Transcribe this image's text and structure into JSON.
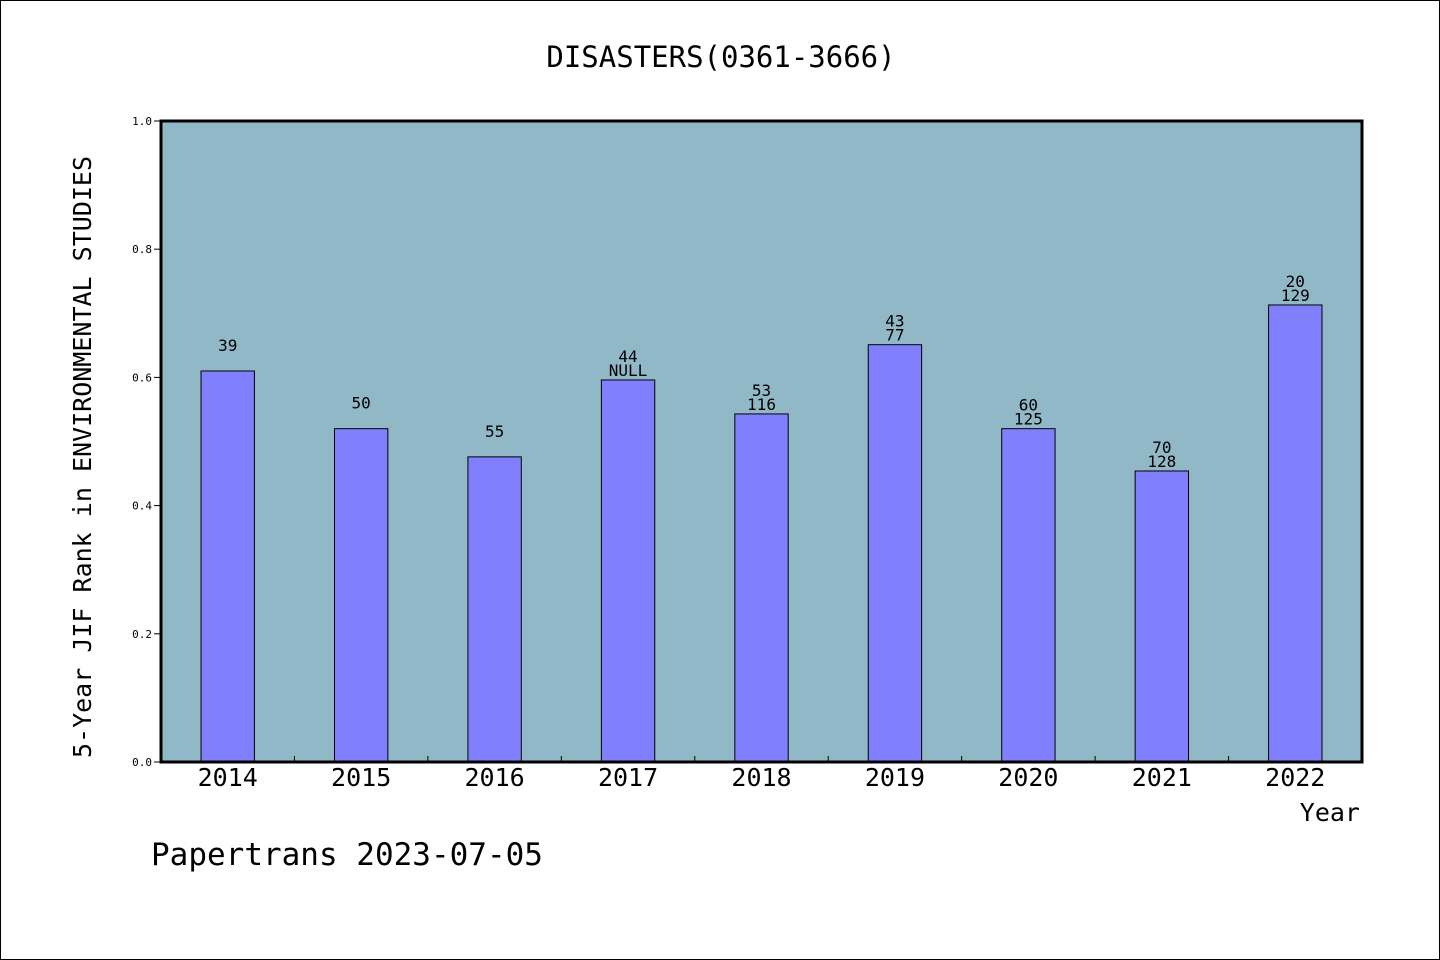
{
  "chart_data": {
    "type": "bar",
    "title": "DISASTERS(0361-3666)",
    "xlabel": "Year",
    "ylabel": "5-Year JIF Rank in ENVIRONMENTAL STUDIES",
    "ylim": [
      0,
      1
    ],
    "yticks": [
      "0.0",
      "0.2",
      "0.4",
      "0.6",
      "0.8",
      "1.0"
    ],
    "categories": [
      "2014",
      "2015",
      "2016",
      "2017",
      "2018",
      "2019",
      "2020",
      "2021",
      "2022"
    ],
    "values": [
      0.61,
      0.52,
      0.476,
      0.596,
      0.543,
      0.651,
      0.52,
      0.454,
      0.713
    ],
    "rank_labels": [
      "39",
      "50",
      "55",
      "44",
      "53",
      "43",
      "60",
      "70",
      "20"
    ],
    "total_labels": [
      "",
      "",
      "",
      "NULL",
      "116",
      "77",
      "125",
      "128",
      "129"
    ],
    "grid": false,
    "legend": "none",
    "colors": {
      "bar": "#8080ff",
      "plot_background": "#90b8c6",
      "axis": "#000000"
    }
  },
  "footer": {
    "text": "Papertrans 2023-07-05"
  }
}
